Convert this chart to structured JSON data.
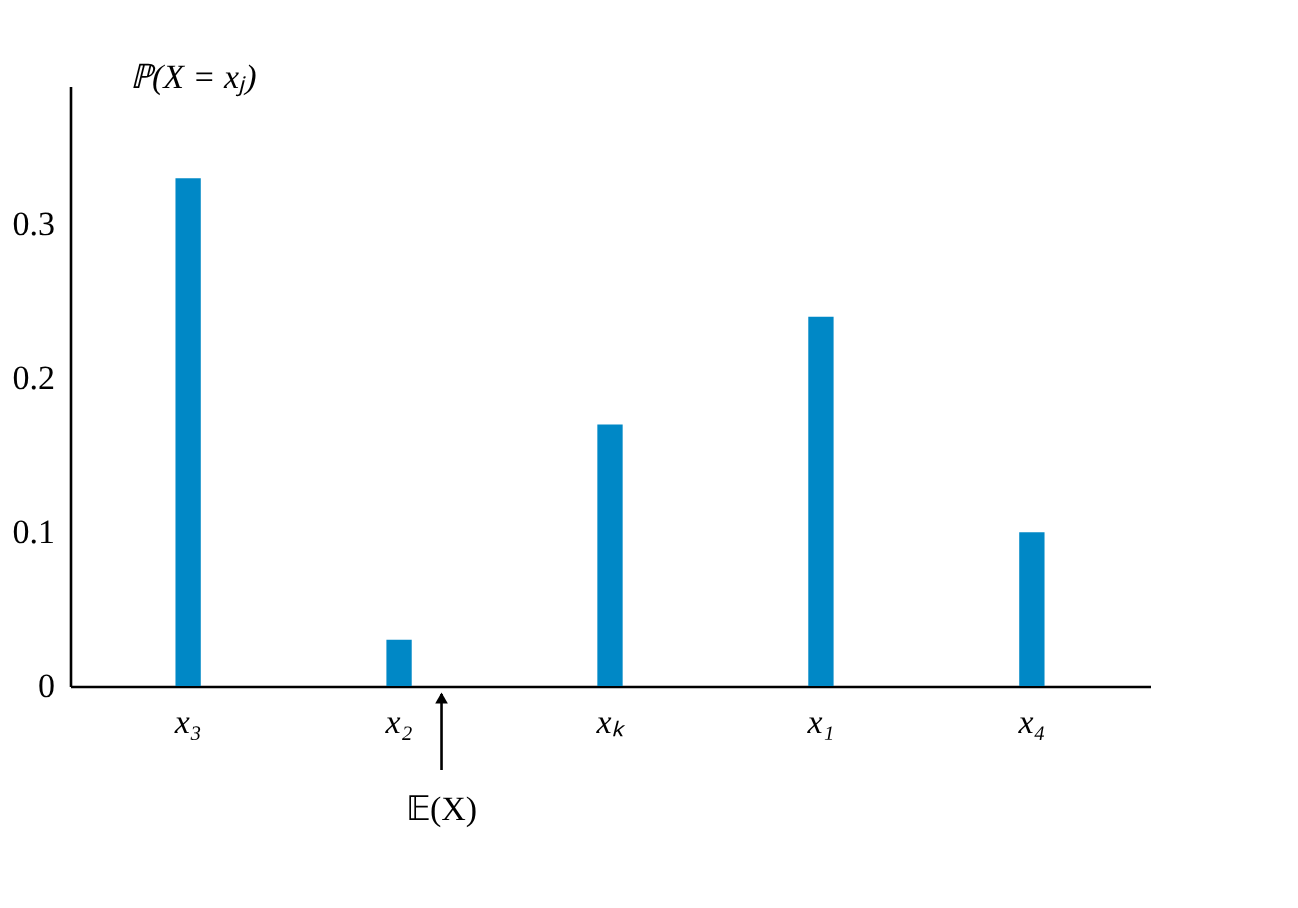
{
  "chart_data": {
    "type": "bar",
    "ylabel": "ℙ(X = xⱼ)",
    "categories": [
      "x₃",
      "x₂",
      "xₖ",
      "x₁",
      "x₄"
    ],
    "values": [
      0.33,
      0.03,
      0.17,
      0.24,
      0.1
    ],
    "color": "#0088c6",
    "ylim": [
      0,
      0.39
    ],
    "yticks": [
      0,
      0.1,
      0.2,
      0.3
    ],
    "grid": false,
    "annotations": [
      "𝔼(X)"
    ]
  }
}
